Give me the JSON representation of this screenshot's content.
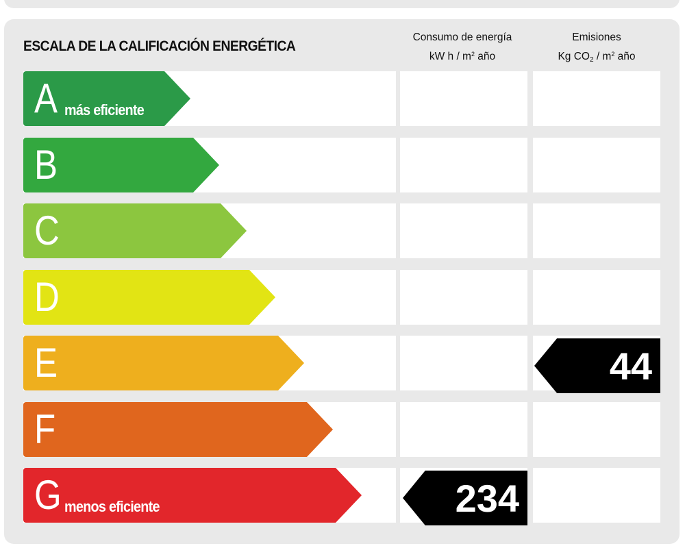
{
  "header": {
    "title": "ESCALA DE LA CALIFICACIÓN ENERGÉTICA",
    "energy_col_line1": "Consumo de energía",
    "energy_col_line2_unit_a": "kW h / m",
    "energy_col_line2_sup": "2",
    "energy_col_line2_unit_b": " año",
    "emis_col_line1": "Emisiones",
    "emis_col_line2_a": "Kg CO",
    "emis_col_line2_sub": "2",
    "emis_col_line2_b": " / m",
    "emis_col_line2_sup": "2",
    "emis_col_line2_c": " año"
  },
  "ratings": [
    {
      "letter": "A",
      "label": "más eficiente",
      "color": "#2b9a48"
    },
    {
      "letter": "B",
      "label": "",
      "color": "#33a83f"
    },
    {
      "letter": "C",
      "label": "",
      "color": "#8cc63f"
    },
    {
      "letter": "D",
      "label": "",
      "color": "#e2e414"
    },
    {
      "letter": "E",
      "label": "",
      "color": "#eeaf1e"
    },
    {
      "letter": "F",
      "label": "",
      "color": "#e0661e"
    },
    {
      "letter": "G",
      "label": "menos eficiente",
      "color": "#e2262b"
    }
  ],
  "energy_consumption": {
    "rating": "G",
    "value": "234"
  },
  "emissions": {
    "rating": "E",
    "value": "44"
  }
}
